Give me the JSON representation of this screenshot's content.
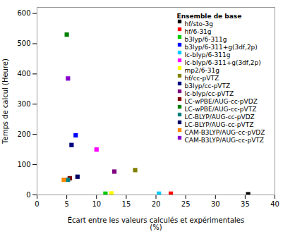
{
  "chart_data": {
    "type": "scatter",
    "xlabel": "Écart entre les valeurs calculés et expérimentales\n(%)",
    "ylabel": "Temps de calcul (Heure)",
    "xlim": [
      0,
      40
    ],
    "ylim": [
      0,
      620
    ],
    "xticks": [
      0,
      5,
      10,
      15,
      20,
      25,
      30,
      35,
      40
    ],
    "yticks": [
      0,
      100,
      200,
      300,
      400,
      500,
      600
    ],
    "grid": false,
    "legend": "upper right",
    "legend_title": "Ensemble de base",
    "marker": "square",
    "series": [
      {
        "name": "hf/sto-3g",
        "color": "#000000",
        "x": [
          35.5
        ],
        "values": [
          2
        ]
      },
      {
        "name": "hf/6-31g",
        "color": "#ff0000",
        "x": [
          22.5
        ],
        "values": [
          4
        ]
      },
      {
        "name": "b3lyp/6-311g",
        "color": "#00cc00",
        "x": [
          11.5
        ],
        "values": [
          4
        ]
      },
      {
        "name": "b3lyp/6-311+g(3df,2p)",
        "color": "#0000ff",
        "x": [
          6.5
        ],
        "values": [
          197
        ]
      },
      {
        "name": "lc-blyp/6-311g",
        "color": "#00ccff",
        "x": [
          20.5
        ],
        "values": [
          4
        ]
      },
      {
        "name": "lc-blyp/6-311+g(3df,2p)",
        "color": "#ff00ff",
        "x": [
          10.0
        ],
        "values": [
          150
        ]
      },
      {
        "name": "mp2/6-31g",
        "color": "#ffff00",
        "x": [
          12.5
        ],
        "values": [
          5
        ]
      },
      {
        "name": "hf/cc-pVTZ",
        "color": "#808000",
        "x": [
          16.5
        ],
        "values": [
          82
        ]
      },
      {
        "name": "b3lyp/cc-pVTZ",
        "color": "#000080",
        "x": [
          5.8
        ],
        "values": [
          165
        ]
      },
      {
        "name": "lc-blyp/cc-pVTZ",
        "color": "#800080",
        "x": [
          13.0
        ],
        "values": [
          77
        ]
      },
      {
        "name": "LC-wPBE/AUG-cc-pVDZ",
        "color": "#800000",
        "x": [
          5.5
        ],
        "values": [
          55
        ]
      },
      {
        "name": "LC-wPBE/AUG-cc-pVTZ",
        "color": "#008000",
        "x": [
          5.0
        ],
        "values": [
          530
        ]
      },
      {
        "name": "LC-BLYP/AUG-cc-pVDZ",
        "color": "#008080",
        "x": [
          5.2
        ],
        "values": [
          50
        ]
      },
      {
        "name": "LC-BLYP/AUG-cc-pVTZ",
        "color": "#000066",
        "x": [
          6.8
        ],
        "values": [
          60
        ]
      },
      {
        "name": "CAM-B3LYP/AUG-cc-pVDZ",
        "color": "#ff8800",
        "x": [
          4.5
        ],
        "values": [
          50
        ]
      },
      {
        "name": "CAM-B3LYP/AUG-cc-pVTZ",
        "color": "#8800cc",
        "x": [
          5.2
        ],
        "values": [
          385
        ]
      }
    ]
  }
}
